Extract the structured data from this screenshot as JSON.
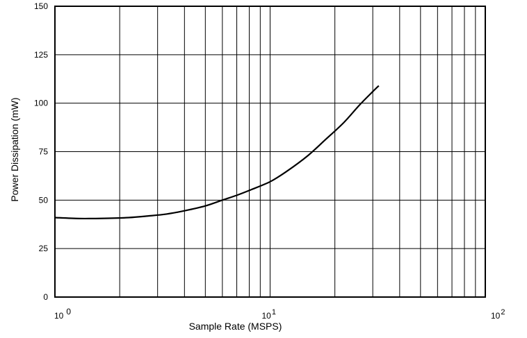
{
  "chart_data": {
    "type": "line",
    "title": "",
    "xlabel": "Sample Rate (MSPS)",
    "ylabel": "Power Dissipation (mW)",
    "x_scale": "log",
    "xlim": [
      1,
      100
    ],
    "ylim": [
      0,
      150
    ],
    "grid": true,
    "x_ticks": [
      {
        "value": 1,
        "base": "10",
        "exp": "0"
      },
      {
        "value": 10,
        "base": "10",
        "exp": "1"
      },
      {
        "value": 100,
        "base": "10",
        "exp": "2"
      }
    ],
    "y_ticks": [
      0,
      25,
      50,
      75,
      100,
      125,
      150
    ],
    "series": [
      {
        "x": [
          1.0,
          1.3,
          1.7,
          2.2,
          2.7,
          3.3,
          4.0,
          5.0,
          6.0,
          7.0,
          8.0,
          10.0,
          12.0,
          15.0,
          18.0,
          22.0,
          26.0,
          30.0,
          32.0
        ],
        "y": [
          41,
          40.5,
          40.6,
          41,
          41.8,
          42.8,
          44.5,
          47,
          50,
          52.5,
          55,
          59.5,
          65,
          73,
          81,
          90,
          99,
          106,
          109
        ]
      }
    ]
  }
}
